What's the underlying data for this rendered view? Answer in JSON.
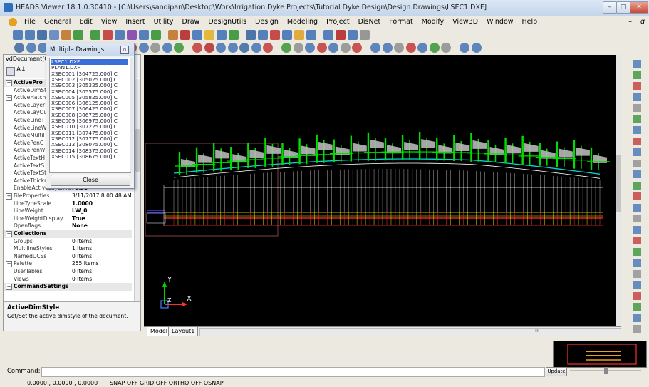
{
  "window": {
    "title": "HEADS Viewer 18.1.0.30410 - [C:\\Users\\sandipan\\Desktop\\Work\\Irrigation Dyke Projects\\Tutorial Dyke Design\\Design Drawings\\LSEC1.DXF]",
    "min_glyph": "–",
    "max_glyph": "□",
    "close_glyph": "✕",
    "mdi_min": "–",
    "mdi_restore": "ɑ"
  },
  "menu": [
    "File",
    "General",
    "Edit",
    "View",
    "Insert",
    "Utility",
    "Draw",
    "DesignUtils",
    "Design",
    "Modeling",
    "Project",
    "DisNet",
    "Format",
    "Modify",
    "View3D",
    "Window",
    "Help"
  ],
  "properties": {
    "combo_value": "vdDocument(C",
    "rows": [
      {
        "name": "ActivePro",
        "value": "",
        "cat": true,
        "expander": "−"
      },
      {
        "name": "ActiveDimSt",
        "value": ""
      },
      {
        "name": "ActiveHatch",
        "value": "",
        "expander": "+"
      },
      {
        "name": "ActiveLayer",
        "value": ""
      },
      {
        "name": "ActiveLayOu",
        "value": ""
      },
      {
        "name": "ActiveLineT",
        "value": ""
      },
      {
        "name": "ActiveLineW",
        "value": ""
      },
      {
        "name": "ActiveMultil",
        "value": ""
      },
      {
        "name": "ActivePenC",
        "value": ""
      },
      {
        "name": "ActivePenW",
        "value": ""
      },
      {
        "name": "ActiveTextH",
        "value": ""
      },
      {
        "name": "ActiveTextS",
        "value": ""
      },
      {
        "name": "ActiveTextSt",
        "value": ""
      },
      {
        "name": "ActiveThickn",
        "value": ""
      },
      {
        "name": "EnableActiveLayerFro",
        "value": "False",
        "bold": true
      },
      {
        "name": "FileProperties",
        "value": "3/11/2017 8:00:48 AM",
        "expander": "+"
      },
      {
        "name": "LineTypeScale",
        "value": "1.0000",
        "bold": true
      },
      {
        "name": "LineWeight",
        "value": "LW_0",
        "bold": true
      },
      {
        "name": "LineWeightDisplay",
        "value": "True",
        "bold": true
      },
      {
        "name": "Openflags",
        "value": "None",
        "bold": true
      },
      {
        "name": "Collections",
        "value": "",
        "cat": true,
        "expander": "−"
      },
      {
        "name": "Groups",
        "value": "0 Items"
      },
      {
        "name": "MultilineStyles",
        "value": "1 Items"
      },
      {
        "name": "NamedUCSs",
        "value": "0 Items"
      },
      {
        "name": "Palette",
        "value": "255 Items",
        "expander": "+"
      },
      {
        "name": "UserTables",
        "value": "0 Items"
      },
      {
        "name": "Views",
        "value": "0 Items"
      },
      {
        "name": "CommandSettings",
        "value": "",
        "cat": true,
        "expander": "−"
      }
    ],
    "desc_title": "ActiveDimStyle",
    "desc_text": "Get/Set the active dimstyle of the document."
  },
  "popup": {
    "title": "Multiple Drawings",
    "items": [
      "LSEC1.DXF",
      "PLAN1.DXF",
      "XSEC001 [304725.000].C",
      "XSEC002 [305025.000].C",
      "XSEC003 [305325.000].C",
      "XSEC004 [305575.000].C",
      "XSEC005 [305825.000].C",
      "XSEC006 [306125.000].C",
      "XSEC007 [306425.000].C",
      "XSEC008 [306725.000].C",
      "XSEC009 [306975.000].C",
      "XSEC010 [307225.000].C",
      "XSEC011 [307475.000].C",
      "XSEC012 [307775.000].C",
      "XSEC013 [308075.000].C",
      "XSEC014 [308375.000].C",
      "XSEC015 [308675.000].C"
    ],
    "selected_index": 0,
    "close_label": "Close"
  },
  "canvas": {
    "ucs_y": "Y",
    "ucs_x": "X",
    "ucs_z": "Z",
    "stations": 25,
    "colors": {
      "flag": "#00e000",
      "ground": "#ffffff",
      "cyan": "#00d8d8",
      "red": "#ff3030",
      "yellow": "#e8e800",
      "blue": "#4040ff"
    }
  },
  "tabs": {
    "model": "Model",
    "layout": "Layout1",
    "scroll_dots": "III"
  },
  "command": {
    "label": "Command:",
    "coords": "0.0000 , 0.0000 , 0.0000",
    "status": "SNAP OFF  GRID OFF  ORTHO OFF  OSNAP",
    "update_label": "Update"
  }
}
